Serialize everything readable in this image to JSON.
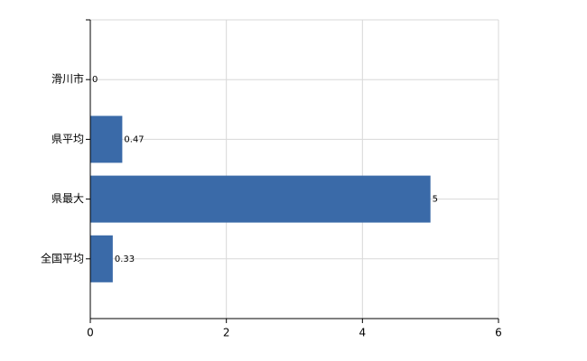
{
  "chart_data": {
    "type": "hbar",
    "categories": [
      "滑川市",
      "県平均",
      "県最大",
      "全国平均"
    ],
    "values": [
      0,
      0.47,
      5,
      0.33
    ],
    "color": "#3a6aa8",
    "xlim": [
      0,
      6
    ],
    "xticks": [
      0,
      2,
      4,
      6
    ],
    "grid": true
  }
}
